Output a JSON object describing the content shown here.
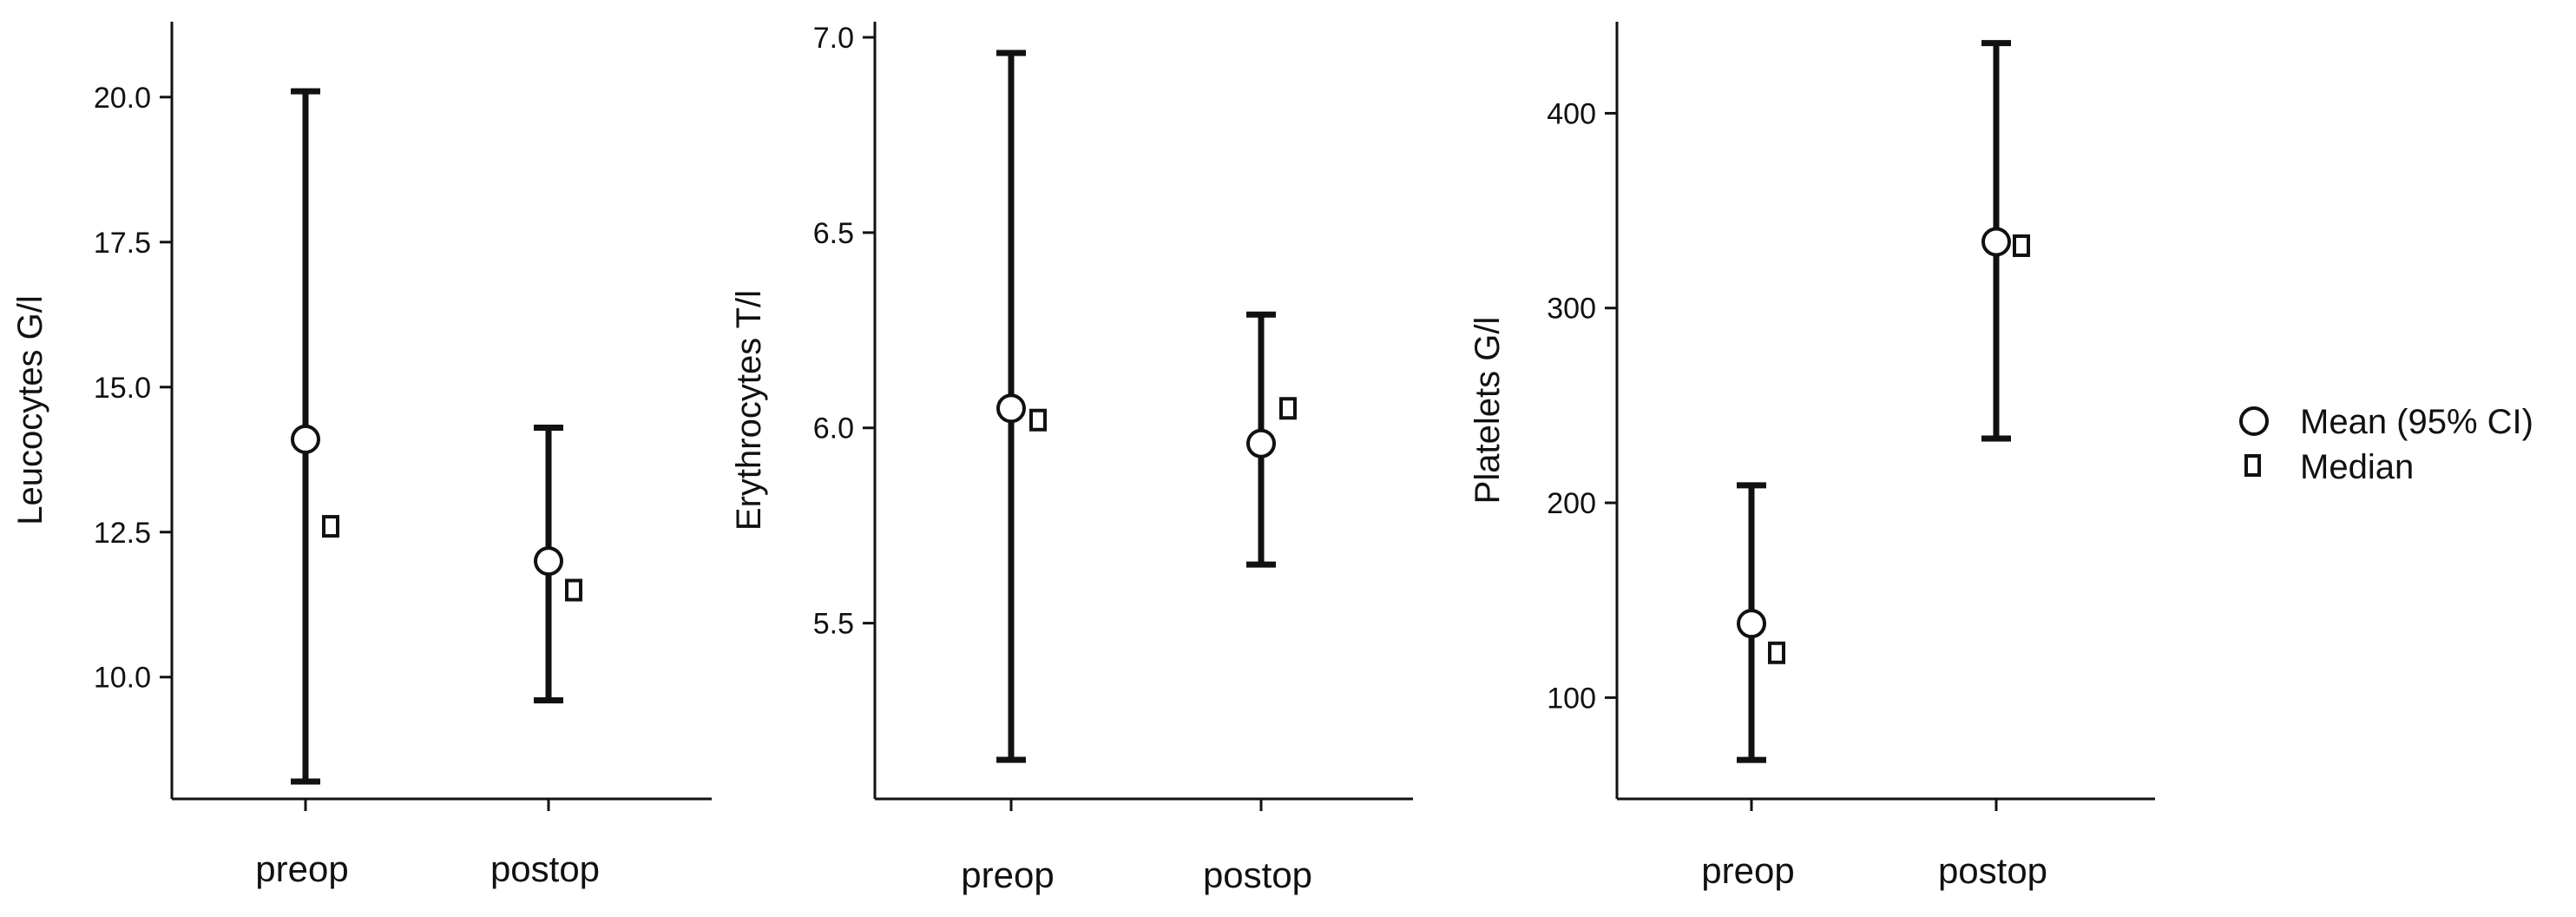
{
  "chart_data": [
    {
      "type": "errorbar",
      "ylabel": "Leucocytes G/l",
      "categories": [
        "preop",
        "postop"
      ],
      "ylim": [
        7.9,
        21.3
      ],
      "yticks": [
        "10.0",
        "12.5",
        "15.0",
        "17.5",
        "20.0"
      ],
      "mean": [
        14.1,
        12.0
      ],
      "ci_low": [
        8.2,
        9.6
      ],
      "ci_high": [
        20.1,
        14.3
      ],
      "median": [
        12.6,
        11.5
      ]
    },
    {
      "type": "errorbar",
      "ylabel": "Erythrocytes T/l",
      "categories": [
        "preop",
        "postop"
      ],
      "ylim": [
        5.05,
        7.04
      ],
      "yticks": [
        "5.5",
        "6.0",
        "6.5",
        "7.0"
      ],
      "mean": [
        6.05,
        5.96
      ],
      "ci_low": [
        5.15,
        5.65
      ],
      "ci_high": [
        6.96,
        6.29
      ],
      "median": [
        6.02,
        6.05
      ]
    },
    {
      "type": "errorbar",
      "ylabel": "Platelets G/l",
      "categories": [
        "preop",
        "postop"
      ],
      "ylim": [
        48,
        447
      ],
      "yticks": [
        "100",
        "200",
        "300",
        "400"
      ],
      "mean": [
        138,
        334
      ],
      "ci_low": [
        68,
        233
      ],
      "ci_high": [
        209,
        436
      ],
      "median": [
        123,
        332
      ]
    }
  ],
  "legend": {
    "placement": "right",
    "mean_label": "Mean (95% CI)",
    "median_label": "Median"
  }
}
